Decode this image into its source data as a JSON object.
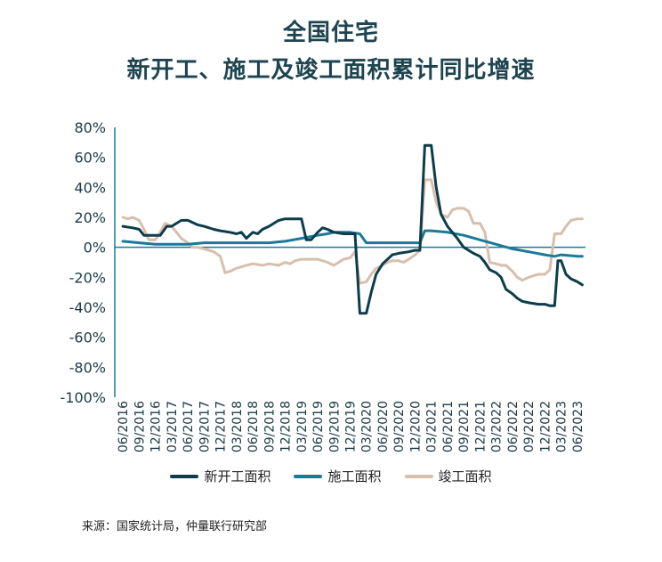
{
  "title_line1": "全国住宅",
  "title_line2": "新开工、施工及竣工面积累计同比增速",
  "source": "来源：国家统计局，仲量联行研究部",
  "colors": {
    "series_new": "#0d3d4a",
    "series_under": "#1a7a9a",
    "series_done": "#d8bfac",
    "axis": "#1a7a9a"
  },
  "chart_data": {
    "type": "line",
    "title": "全国住宅 新开工、施工及竣工面积累计同比增速",
    "xlabel": "",
    "ylabel": "",
    "ylim": [
      -100,
      80
    ],
    "y_ticks": [
      "80%",
      "60%",
      "40%",
      "20%",
      "0%",
      "-20%",
      "-40%",
      "-60%",
      "-80%",
      "-100%"
    ],
    "x_ticks": [
      "06/2016",
      "09/2016",
      "12/2016",
      "03/2017",
      "06/2017",
      "09/2017",
      "12/2017",
      "03/2018",
      "06/2018",
      "09/2018",
      "12/2018",
      "03/2019",
      "06/2019",
      "09/2019",
      "12/2019",
      "03/2020",
      "06/2020",
      "09/2020",
      "12/2020",
      "03/2021",
      "06/2021",
      "09/2021",
      "12/2021",
      "03/2022",
      "06/2022",
      "09/2022",
      "12/2022",
      "03/2023",
      "06/2023"
    ],
    "grid": false,
    "legend_position": "bottom",
    "series": [
      {
        "name": "新开工面积",
        "values": [
          [
            0,
            14
          ],
          [
            0.6,
            13
          ],
          [
            1,
            12
          ],
          [
            1.3,
            8
          ],
          [
            1.9,
            8
          ],
          [
            2.3,
            8
          ],
          [
            2.7,
            14
          ],
          [
            3,
            14
          ],
          [
            3.6,
            18
          ],
          [
            4,
            18
          ],
          [
            4.6,
            15
          ],
          [
            5,
            14
          ],
          [
            5.6,
            12
          ],
          [
            6,
            11
          ],
          [
            6.6,
            10
          ],
          [
            7,
            9
          ],
          [
            7.3,
            10
          ],
          [
            7.6,
            6
          ],
          [
            8,
            10
          ],
          [
            8.3,
            9
          ],
          [
            8.6,
            12
          ],
          [
            9,
            14
          ],
          [
            9.6,
            18
          ],
          [
            10,
            19
          ],
          [
            10.6,
            19
          ],
          [
            11,
            19
          ],
          [
            11.3,
            5
          ],
          [
            11.6,
            5
          ],
          [
            12,
            10
          ],
          [
            12.3,
            13
          ],
          [
            12.6,
            12
          ],
          [
            13,
            10
          ],
          [
            13.6,
            9
          ],
          [
            14,
            9
          ],
          [
            14.3,
            9
          ],
          [
            14.6,
            -44
          ],
          [
            15,
            -44
          ],
          [
            15.3,
            -30
          ],
          [
            15.6,
            -18
          ],
          [
            16,
            -11
          ],
          [
            16.6,
            -5
          ],
          [
            17,
            -4
          ],
          [
            17.6,
            -3
          ],
          [
            18,
            -2
          ],
          [
            18.3,
            -2
          ],
          [
            18.6,
            68
          ],
          [
            19,
            68
          ],
          [
            19.3,
            40
          ],
          [
            19.6,
            22
          ],
          [
            20,
            14
          ],
          [
            20.6,
            6
          ],
          [
            21,
            0
          ],
          [
            21.6,
            -4
          ],
          [
            22,
            -6
          ],
          [
            22.3,
            -10
          ],
          [
            22.6,
            -15
          ],
          [
            23,
            -17
          ],
          [
            23.3,
            -20
          ],
          [
            23.6,
            -28
          ],
          [
            24,
            -31
          ],
          [
            24.3,
            -34
          ],
          [
            24.6,
            -36
          ],
          [
            25,
            -37
          ],
          [
            25.6,
            -38
          ],
          [
            26,
            -38
          ],
          [
            26.3,
            -39
          ],
          [
            26.6,
            -39
          ],
          [
            26.8,
            -9
          ],
          [
            27,
            -9
          ],
          [
            27.3,
            -18
          ],
          [
            27.6,
            -21
          ],
          [
            28,
            -23
          ],
          [
            28.3,
            -25
          ]
        ]
      },
      {
        "name": "施工面积",
        "values": [
          [
            0,
            4
          ],
          [
            1,
            3
          ],
          [
            2,
            2
          ],
          [
            3,
            2
          ],
          [
            4,
            2
          ],
          [
            5,
            3
          ],
          [
            6,
            3
          ],
          [
            7,
            3
          ],
          [
            8,
            3
          ],
          [
            9,
            3
          ],
          [
            10,
            4
          ],
          [
            11,
            6
          ],
          [
            12,
            8
          ],
          [
            12.6,
            9
          ],
          [
            13,
            10
          ],
          [
            14,
            10
          ],
          [
            14.6,
            9
          ],
          [
            15,
            3
          ],
          [
            16,
            3
          ],
          [
            17,
            3
          ],
          [
            18,
            3
          ],
          [
            18.3,
            3
          ],
          [
            18.6,
            11
          ],
          [
            19,
            11
          ],
          [
            20,
            10
          ],
          [
            21,
            8
          ],
          [
            22,
            5
          ],
          [
            23,
            2
          ],
          [
            24,
            -1
          ],
          [
            25,
            -3
          ],
          [
            26,
            -5
          ],
          [
            26.6,
            -6
          ],
          [
            27,
            -5
          ],
          [
            28,
            -6
          ],
          [
            28.3,
            -6
          ]
        ]
      },
      {
        "name": "竣工面积",
        "values": [
          [
            0,
            20
          ],
          [
            0.3,
            19
          ],
          [
            0.6,
            20
          ],
          [
            1,
            18
          ],
          [
            1.3,
            12
          ],
          [
            1.6,
            5
          ],
          [
            2,
            5
          ],
          [
            2.3,
            10
          ],
          [
            2.6,
            16
          ],
          [
            3,
            14
          ],
          [
            3.3,
            10
          ],
          [
            3.6,
            6
          ],
          [
            4,
            3
          ],
          [
            4.3,
            0
          ],
          [
            4.6,
            0
          ],
          [
            5,
            -1
          ],
          [
            5.3,
            -2
          ],
          [
            5.6,
            -3
          ],
          [
            6,
            -6
          ],
          [
            6.3,
            -17
          ],
          [
            6.6,
            -16
          ],
          [
            7,
            -14
          ],
          [
            7.6,
            -12
          ],
          [
            8,
            -11
          ],
          [
            8.6,
            -12
          ],
          [
            9,
            -11
          ],
          [
            9.6,
            -12
          ],
          [
            10,
            -10
          ],
          [
            10.3,
            -11
          ],
          [
            10.6,
            -9
          ],
          [
            11,
            -8
          ],
          [
            12,
            -8
          ],
          [
            12.6,
            -10
          ],
          [
            13,
            -12
          ],
          [
            13.3,
            -10
          ],
          [
            13.6,
            -8
          ],
          [
            14,
            -7
          ],
          [
            14.3,
            -3
          ],
          [
            14.6,
            -24
          ],
          [
            15,
            -23
          ],
          [
            15.3,
            -18
          ],
          [
            15.6,
            -14
          ],
          [
            16,
            -12
          ],
          [
            16.3,
            -10
          ],
          [
            16.6,
            -9
          ],
          [
            17,
            -9
          ],
          [
            17.3,
            -10
          ],
          [
            17.6,
            -8
          ],
          [
            18,
            -5
          ],
          [
            18.3,
            -2
          ],
          [
            18.6,
            45
          ],
          [
            19,
            45
          ],
          [
            19.3,
            30
          ],
          [
            19.6,
            22
          ],
          [
            20,
            20
          ],
          [
            20.3,
            25
          ],
          [
            20.6,
            26
          ],
          [
            21,
            26
          ],
          [
            21.3,
            24
          ],
          [
            21.6,
            16
          ],
          [
            22,
            16
          ],
          [
            22.3,
            10
          ],
          [
            22.6,
            -10
          ],
          [
            23,
            -11
          ],
          [
            23.3,
            -12
          ],
          [
            23.6,
            -12
          ],
          [
            24,
            -16
          ],
          [
            24.3,
            -20
          ],
          [
            24.6,
            -22
          ],
          [
            25,
            -20
          ],
          [
            25.3,
            -19
          ],
          [
            25.6,
            -18
          ],
          [
            26,
            -18
          ],
          [
            26.3,
            -15
          ],
          [
            26.6,
            9
          ],
          [
            27,
            9
          ],
          [
            27.3,
            14
          ],
          [
            27.6,
            18
          ],
          [
            28,
            19
          ],
          [
            28.3,
            19
          ]
        ]
      }
    ]
  }
}
